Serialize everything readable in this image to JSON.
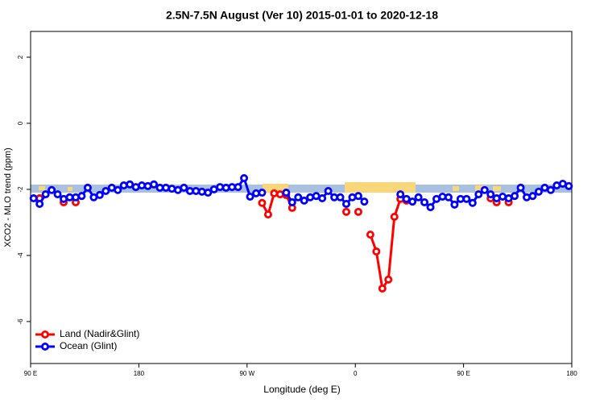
{
  "chart_data": {
    "type": "line",
    "title": "2.5N-7.5N August (Ver 10)   2015-01-01 to 2020-12-18",
    "xlabel": "Longitude (deg E)",
    "ylabel": "XCO2 - MLO trend (ppm)",
    "x": [
      92.5,
      97.5,
      102.5,
      107.5,
      112.5,
      117.5,
      122.5,
      127.5,
      132.5,
      137.5,
      142.5,
      147.5,
      152.5,
      157.5,
      162.5,
      167.5,
      172.5,
      177.5,
      182.5,
      187.5,
      192.5,
      197.5,
      202.5,
      207.5,
      212.5,
      217.5,
      222.5,
      227.5,
      232.5,
      237.5,
      242.5,
      247.5,
      252.5,
      257.5,
      262.5,
      267.5,
      272.5,
      277.5,
      282.5,
      287.5,
      292.5,
      297.5,
      302.5,
      307.5,
      312.5,
      317.5,
      322.5,
      327.5,
      332.5,
      337.5,
      342.5,
      347.5,
      352.5,
      357.5,
      362.5,
      367.5,
      372.5,
      377.5,
      382.5,
      387.5,
      392.5,
      397.5,
      402.5,
      407.5,
      412.5,
      417.5,
      422.5,
      427.5,
      432.5,
      437.5,
      442.5,
      447.5,
      452.5,
      457.5,
      462.5,
      467.5,
      472.5,
      477.5,
      482.5,
      487.5,
      492.5,
      497.5,
      502.5,
      507.5,
      512.5,
      517.5,
      522.5,
      527.5,
      532.5,
      537.5
    ],
    "series": [
      {
        "name": "Land (Nadir&Glint)",
        "color": "#ff0000",
        "values": [
          null,
          -2.27,
          null,
          null,
          null,
          -2.39,
          null,
          -2.39,
          null,
          null,
          null,
          null,
          null,
          null,
          null,
          null,
          null,
          null,
          null,
          null,
          null,
          null,
          null,
          null,
          null,
          null,
          null,
          null,
          null,
          null,
          null,
          null,
          null,
          null,
          null,
          null,
          null,
          null,
          -2.41,
          -2.76,
          -2.12,
          -2.15,
          -2.17,
          -2.56,
          null,
          null,
          null,
          null,
          null,
          null,
          null,
          null,
          -2.68,
          null,
          -2.68,
          null,
          -3.37,
          -3.88,
          -5.0,
          -4.73,
          -2.83,
          -2.29,
          -2.34,
          null,
          null,
          null,
          null,
          null,
          null,
          null,
          null,
          null,
          null,
          null,
          null,
          null,
          -2.27,
          -2.39,
          null,
          -2.39,
          null,
          null,
          null,
          null,
          null,
          null,
          null,
          null,
          null,
          null
        ]
      },
      {
        "name": "Ocean (Glint)",
        "color": "#0000ff",
        "values": [
          -2.27,
          -2.44,
          -2.15,
          -2.02,
          -2.15,
          -2.29,
          -2.24,
          -2.24,
          -2.2,
          -1.95,
          -2.24,
          -2.17,
          -2.05,
          -1.95,
          -2.02,
          -1.88,
          -1.85,
          -1.93,
          -1.88,
          -1.9,
          -1.85,
          -1.95,
          -1.95,
          -1.98,
          -2.02,
          -1.95,
          -2.05,
          -2.05,
          -2.07,
          -2.1,
          -2.0,
          -1.93,
          -1.95,
          -1.93,
          -1.93,
          -1.66,
          -2.22,
          -2.12,
          -2.1,
          null,
          null,
          null,
          -2.1,
          -2.39,
          -2.24,
          -2.34,
          -2.24,
          -2.2,
          -2.27,
          -2.05,
          -2.24,
          -2.24,
          -2.44,
          -2.24,
          -2.2,
          -2.37,
          null,
          null,
          null,
          null,
          null,
          -2.15,
          -2.29,
          -2.37,
          -2.24,
          -2.39,
          -2.54,
          -2.29,
          -2.22,
          -2.24,
          -2.46,
          -2.29,
          -2.29,
          -2.41,
          -2.15,
          -2.02,
          -2.15,
          -2.27,
          -2.22,
          -2.27,
          -2.2,
          -1.95,
          -2.24,
          -2.2,
          -2.07,
          -1.95,
          -2.02,
          -1.88,
          -1.83,
          -1.9
        ]
      }
    ],
    "xlim": [
      90,
      540
    ],
    "xticks": [
      {
        "value": 90,
        "label": "90 E"
      },
      180,
      {
        "value": 270,
        "label": "90 W"
      },
      {
        "value": 360,
        "label": "0"
      },
      {
        "value": 450,
        "label": "90 E"
      },
      {
        "value": 540,
        "label": "180"
      }
    ],
    "ylim": [
      -7.27,
      2.78
    ],
    "yticks": [
      -6,
      -4,
      -2,
      0,
      2
    ],
    "legend": "bottom-left"
  }
}
